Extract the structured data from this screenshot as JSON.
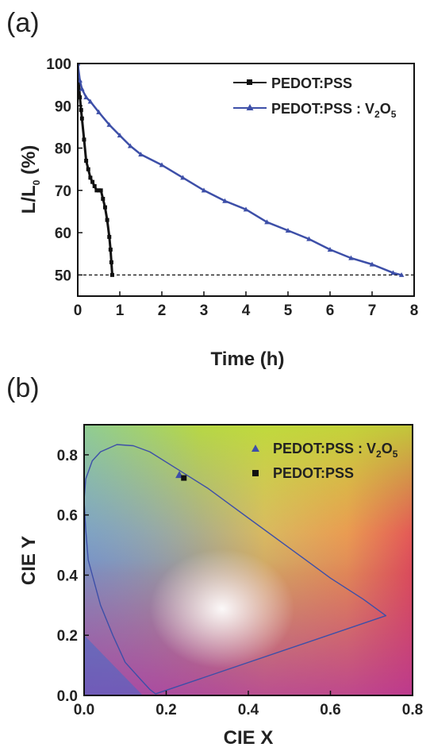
{
  "chart_data": [
    {
      "panel": "(a)",
      "type": "line",
      "xlabel": "Time (h)",
      "ylabel_main": "L/L",
      "ylabel_sub": "0",
      "ylabel_tail": " (%)",
      "xlim": [
        0,
        8
      ],
      "ylim": [
        45,
        100
      ],
      "xticks": [
        0,
        1,
        2,
        3,
        4,
        5,
        6,
        7,
        8
      ],
      "yticks": [
        50,
        60,
        70,
        80,
        90,
        100
      ],
      "reference_line_y": 50,
      "series": [
        {
          "name": "PEDOT:PSS",
          "color": "#111111",
          "marker": "square",
          "x": [
            0,
            0.02,
            0.05,
            0.08,
            0.1,
            0.15,
            0.2,
            0.25,
            0.3,
            0.35,
            0.4,
            0.45,
            0.5,
            0.55,
            0.6,
            0.65,
            0.7,
            0.75,
            0.78,
            0.8,
            0.82
          ],
          "y": [
            100,
            96,
            92,
            89,
            87,
            82,
            77,
            75,
            73,
            72,
            71,
            70,
            70,
            70,
            68,
            66,
            63,
            59,
            56,
            53,
            50
          ]
        },
        {
          "name": "PEDOT:PSS : V2O5",
          "name_main": "PEDOT:PSS : V",
          "name_sub1": "2",
          "name_mid": "O",
          "name_sub2": "5",
          "color": "#3d4fa8",
          "marker": "triangle",
          "x": [
            0,
            0.05,
            0.1,
            0.2,
            0.3,
            0.5,
            0.75,
            1,
            1.25,
            1.5,
            2,
            2.5,
            3,
            3.5,
            4,
            4.5,
            5,
            5.5,
            6,
            6.5,
            7,
            7.5,
            7.7
          ],
          "y": [
            100,
            96,
            94,
            92,
            91,
            88.5,
            85.5,
            83,
            80.5,
            78.5,
            76,
            73,
            70,
            67.5,
            65.5,
            62.5,
            60.5,
            58.5,
            56,
            54,
            52.5,
            50.5,
            50
          ]
        }
      ]
    },
    {
      "panel": "(b)",
      "type": "scatter",
      "xlabel": "CIE X",
      "ylabel": "CIE Y",
      "xlim": [
        0,
        0.8
      ],
      "ylim": [
        0,
        0.9
      ],
      "xticks": [
        0.0,
        0.2,
        0.4,
        0.6,
        0.8
      ],
      "yticks": [
        0.0,
        0.2,
        0.4,
        0.6,
        0.8
      ],
      "xtick_labels": [
        "0.0",
        "0.2",
        "0.4",
        "0.6",
        "0.8"
      ],
      "ytick_labels": [
        "0.0",
        "0.2",
        "0.4",
        "0.6",
        "0.8"
      ],
      "series": [
        {
          "name": "PEDOT:PSS : V2O5",
          "name_main": "PEDOT:PSS : V",
          "name_sub1": "2",
          "name_mid": "O",
          "name_sub2": "5",
          "color": "#3d4fa8",
          "marker": "triangle",
          "x": [
            0.232
          ],
          "y": [
            0.733
          ]
        },
        {
          "name": "PEDOT:PSS",
          "color": "#111111",
          "marker": "square",
          "x": [
            0.243
          ],
          "y": [
            0.723
          ]
        }
      ],
      "locus": {
        "x": [
          0.174,
          0.16,
          0.14,
          0.1,
          0.07,
          0.04,
          0.01,
          0.004,
          0.0,
          0.004,
          0.02,
          0.04,
          0.08,
          0.12,
          0.16,
          0.23,
          0.3,
          0.4,
          0.5,
          0.6,
          0.68,
          0.735
        ],
        "y": [
          0.005,
          0.02,
          0.05,
          0.11,
          0.2,
          0.3,
          0.45,
          0.55,
          0.65,
          0.72,
          0.78,
          0.81,
          0.834,
          0.83,
          0.81,
          0.75,
          0.69,
          0.59,
          0.49,
          0.39,
          0.32,
          0.265
        ]
      }
    }
  ]
}
